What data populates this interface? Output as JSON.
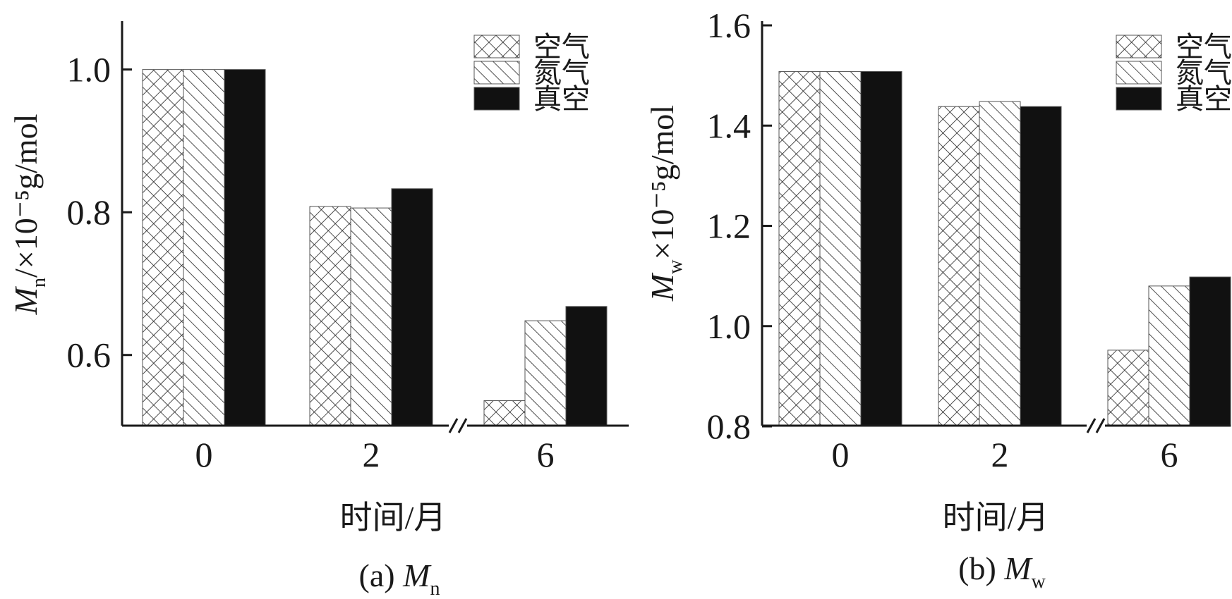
{
  "chart_data": [
    {
      "type": "bar",
      "panel_label": "(a)",
      "panel_symbol": "M",
      "panel_symbol_sub": "n",
      "categories": [
        "0",
        "2",
        "6"
      ],
      "xlabel": "时间/月",
      "ylabel_symbol": "M",
      "ylabel_sub": "n",
      "ylabel_rest": "/×10⁻⁵g/mol",
      "yticks": [
        "0.6",
        "0.8",
        "1.0"
      ],
      "ylim": [
        0.5,
        1.05
      ],
      "axis_break_between": [
        "2",
        "6"
      ],
      "legend_position": "top-right",
      "series": [
        {
          "name": "空气",
          "pattern": "crosshatch",
          "values": [
            1.0,
            0.808,
            0.536
          ]
        },
        {
          "name": "氮气",
          "pattern": "diagonal",
          "values": [
            1.0,
            0.806,
            0.648
          ]
        },
        {
          "name": "真空",
          "pattern": "solid",
          "values": [
            1.0,
            0.833,
            0.668
          ]
        }
      ]
    },
    {
      "type": "bar",
      "panel_label": "(b)",
      "panel_symbol": "M",
      "panel_symbol_sub": "w",
      "categories": [
        "0",
        "2",
        "6"
      ],
      "xlabel": "时间/月",
      "ylabel_symbol": "M",
      "ylabel_sub": "w",
      "ylabel_rest": "×10⁻⁵g/mol",
      "yticks": [
        "0.8",
        "1.0",
        "1.2",
        "1.4",
        "1.6"
      ],
      "ylim": [
        0.8,
        1.6
      ],
      "axis_break_between": [
        "2",
        "6"
      ],
      "legend_position": "top-right",
      "series": [
        {
          "name": "空气",
          "pattern": "crosshatch",
          "values": [
            1.508,
            1.438,
            0.952
          ]
        },
        {
          "name": "氮气",
          "pattern": "diagonal",
          "values": [
            1.508,
            1.448,
            1.08
          ]
        },
        {
          "name": "真空",
          "pattern": "solid",
          "values": [
            1.508,
            1.438,
            1.098
          ]
        }
      ]
    }
  ]
}
